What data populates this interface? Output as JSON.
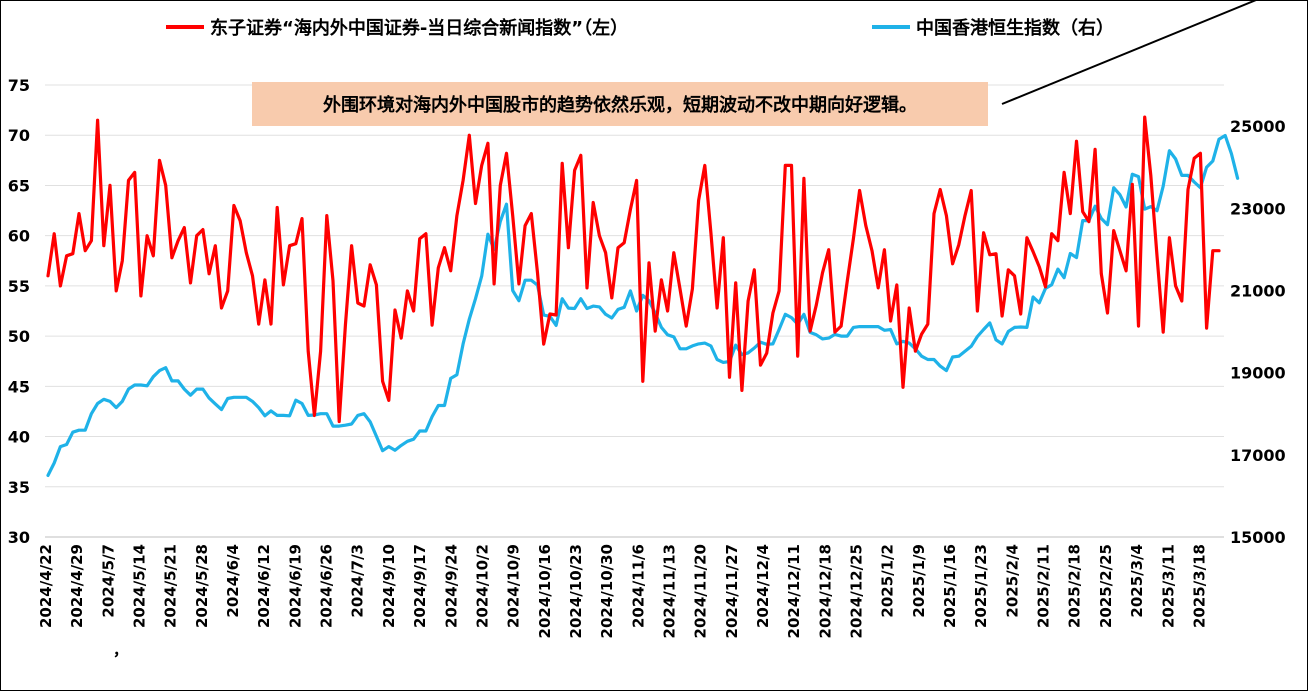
{
  "chart_data": {
    "type": "line",
    "annotation": "外围环境对海内外中国股市的趋势依然乐观，短期波动不改中期向好逻辑。",
    "legend_placement": "top",
    "grid": true,
    "left_axis": {
      "range": [
        30,
        75
      ],
      "ticks": [
        30,
        35,
        40,
        45,
        50,
        55,
        60,
        65,
        70,
        75
      ]
    },
    "right_axis": {
      "range": [
        15000,
        26000
      ],
      "ticks": [
        15000,
        17000,
        19000,
        21000,
        23000,
        25000
      ]
    },
    "x_tick_labels": [
      "2024/4/22",
      "2024/4/29",
      "2024/5/7",
      "2024/5/14",
      "2024/5/21",
      "2024/5/28",
      "2024/6/4",
      "2024/6/12",
      "2024/6/19",
      "2024/6/26",
      "2024/7/3",
      "2024/9/10",
      "2024/9/17",
      "2024/9/24",
      "2024/10/2",
      "2024/10/9",
      "2024/10/16",
      "2024/10/23",
      "2024/10/30",
      "2024/11/6",
      "2024/11/13",
      "2024/11/20",
      "2024/11/27",
      "2024/12/4",
      "2024/12/11",
      "2024/12/18",
      "2024/12/25",
      "2025/1/2",
      "2025/1/9",
      "2025/1/16",
      "2025/1/23",
      "2025/2/4",
      "2025/2/11",
      "2025/2/18",
      "2025/2/25",
      "2025/3/4",
      "2025/3/11",
      "2025/3/18"
    ],
    "x_stray_mark": "，",
    "series": [
      {
        "name": "东子证券“海内外中国证券-当日综合新闻指数”（左）",
        "axis": "left",
        "color": "#ff0000",
        "values": [
          56.0,
          60.2,
          55.0,
          58.0,
          58.2,
          62.2,
          58.5,
          59.5,
          71.5,
          59.0,
          65.0,
          54.5,
          57.5,
          65.5,
          66.3,
          54.0,
          60.0,
          58.0,
          67.5,
          65.0,
          57.8,
          59.5,
          60.8,
          55.3,
          60.0,
          60.6,
          56.2,
          59.0,
          52.8,
          54.5,
          63.0,
          61.5,
          58.3,
          56.0,
          51.2,
          55.6,
          51.2,
          62.8,
          55.1,
          59.0,
          59.2,
          61.7,
          48.5,
          42.1,
          48.5,
          62.0,
          55.5,
          41.5,
          51.1,
          59.0,
          53.3,
          53.0,
          57.1,
          55.1,
          45.5,
          43.6,
          52.6,
          49.8,
          54.5,
          52.5,
          59.7,
          60.2,
          51.1,
          56.8,
          58.8,
          56.5,
          62.0,
          65.5,
          70.0,
          63.2,
          67.0,
          69.2,
          55.2,
          65.0,
          68.2,
          62.0,
          55.2,
          61.0,
          62.2,
          56.3,
          49.2,
          52.2,
          52.1,
          67.2,
          58.8,
          66.5,
          68.0,
          54.8,
          63.3,
          60.0,
          58.3,
          53.8,
          58.8,
          59.3,
          62.6,
          65.5,
          45.5,
          57.3,
          50.5,
          55.6,
          52.5,
          58.3,
          54.7,
          51.0,
          54.7,
          63.5,
          67.0,
          60.3,
          52.8,
          59.8,
          45.9,
          55.3,
          44.6,
          53.5,
          56.6,
          47.1,
          48.3,
          52.3,
          54.5,
          67.0,
          67.0,
          48.0,
          65.7,
          50.5,
          53.1,
          56.3,
          58.6,
          50.4,
          51.0,
          55.5,
          59.7,
          64.5,
          61.0,
          58.5,
          54.8,
          58.6,
          51.5,
          55.1,
          44.9,
          52.8,
          48.5,
          50.2,
          51.2,
          62.2,
          64.6,
          62.0,
          57.2,
          59.1,
          62.0,
          64.5,
          52.5,
          60.3,
          58.1,
          58.2,
          52.0,
          56.6,
          56.0,
          52.2,
          59.8,
          58.4,
          56.9,
          54.9,
          60.2,
          59.5,
          66.3,
          62.2,
          69.4,
          62.4,
          61.4,
          68.6,
          56.2,
          52.3,
          60.5,
          58.5,
          56.5,
          65.1,
          51.0,
          71.8,
          66.0,
          58.0,
          50.4,
          59.8,
          55.0,
          53.5,
          64.6,
          67.7,
          68.2,
          50.8,
          58.5,
          58.5
        ]
      },
      {
        "name": "中国香港恒生指数（右）",
        "axis": "right",
        "color": "#1fb2e8",
        "values": [
          16500,
          16800,
          17200,
          17250,
          17550,
          17600,
          17600,
          18000,
          18250,
          18350,
          18300,
          18150,
          18300,
          18600,
          18700,
          18700,
          18680,
          18900,
          19050,
          19120,
          18800,
          18800,
          18600,
          18450,
          18600,
          18600,
          18380,
          18240,
          18100,
          18370,
          18400,
          18400,
          18400,
          18300,
          18150,
          17950,
          18070,
          17960,
          17960,
          17950,
          18330,
          18250,
          17960,
          17970,
          18000,
          18000,
          17700,
          17700,
          17720,
          17750,
          17960,
          18000,
          17800,
          17450,
          17100,
          17200,
          17110,
          17230,
          17330,
          17380,
          17580,
          17580,
          17930,
          18200,
          18200,
          18860,
          18950,
          19700,
          20300,
          20800,
          21350,
          22370,
          22000,
          22680,
          23100,
          21000,
          20750,
          21250,
          21250,
          21130,
          20400,
          20370,
          20150,
          20800,
          20570,
          20560,
          20800,
          20560,
          20620,
          20600,
          20420,
          20330,
          20540,
          20590,
          20990,
          20500,
          20880,
          20750,
          20450,
          20100,
          19920,
          19870,
          19580,
          19580,
          19650,
          19700,
          19720,
          19650,
          19320,
          19250,
          19270,
          19670,
          19440,
          19480,
          19600,
          19740,
          19690,
          19700,
          20050,
          20420,
          20340,
          20180,
          20420,
          19980,
          19920,
          19820,
          19840,
          19930,
          19890,
          19890,
          20100,
          20120,
          20120,
          20120,
          20120,
          20030,
          20050,
          19700,
          19760,
          19720,
          19580,
          19400,
          19320,
          19320,
          19160,
          19050,
          19380,
          19400,
          19520,
          19640,
          19880,
          20050,
          20210,
          19800,
          19700,
          20000,
          20100,
          20110,
          20100,
          20840,
          20700,
          21050,
          21140,
          21520,
          21310,
          21900,
          21800,
          22700,
          22700,
          23050,
          22750,
          22600,
          23500,
          23330,
          23030,
          23830,
          23770,
          22980,
          23040,
          22940,
          23540,
          24400,
          24200,
          23800,
          23800,
          23640,
          23500,
          24000,
          24150,
          24680,
          24770,
          24330,
          23730
        ]
      }
    ],
    "arrow": {
      "from_index": 195,
      "to_label": "annotation"
    }
  }
}
